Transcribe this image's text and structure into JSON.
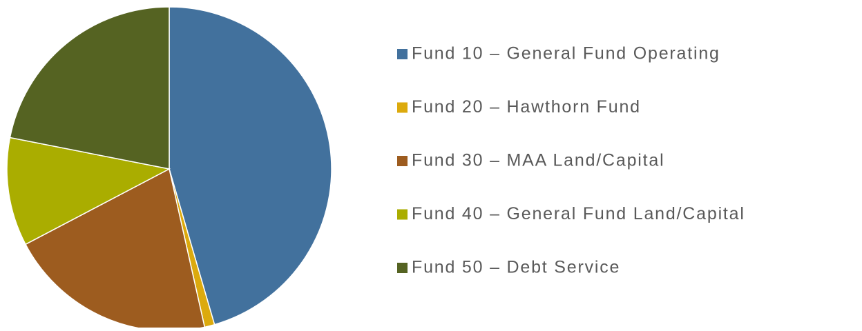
{
  "chart_data": {
    "type": "pie",
    "categories": [
      "Fund 10 – General Fund Operating",
      "Fund 20 – Hawthorn Fund",
      "Fund 30 – MAA Land/Capital",
      "Fund 40 – General Fund Land/Capital",
      "Fund 50 – Debt Service"
    ],
    "values": [
      45.5,
      1,
      20.8,
      10.8,
      21.9
    ],
    "colors": [
      "#42719d",
      "#dcaa0d",
      "#9d5c1f",
      "#aaad00",
      "#556322"
    ],
    "legend": "right"
  }
}
